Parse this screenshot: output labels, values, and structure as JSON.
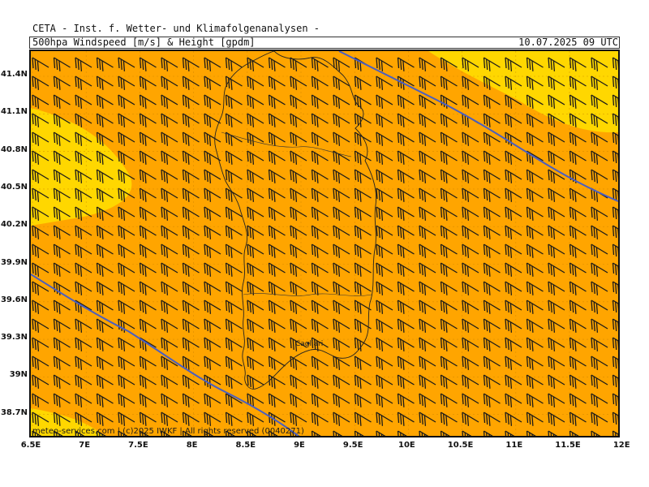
{
  "header": {
    "institute": "CETA - Inst. f. Wetter- und Klimafolgenanalysen -",
    "product": "500hpa Windspeed [m/s] & Height [gpdm]",
    "valid_time": "10.07.2025 09 UTC"
  },
  "map": {
    "lat_ticks": [
      "41.4N",
      "41.1N",
      "40.8N",
      "40.5N",
      "40.2N",
      "39.9N",
      "39.6N",
      "39.3N",
      "39N",
      "38.7N"
    ],
    "lon_ticks": [
      "6.5E",
      "7E",
      "7.5E",
      "8E",
      "8.5E",
      "9E",
      "9.5E",
      "10E",
      "10.5E",
      "11E",
      "11.5E",
      "12E"
    ],
    "city_label": "Cagliari",
    "credit": "meteo-services.com | (c)2025 IWKF | All rights reserved (0040271)",
    "colors": {
      "field_main": "#ffa500",
      "field_high": "#ffd700",
      "contour": "#4a5fc1",
      "barb": "#1a1a1a"
    }
  }
}
